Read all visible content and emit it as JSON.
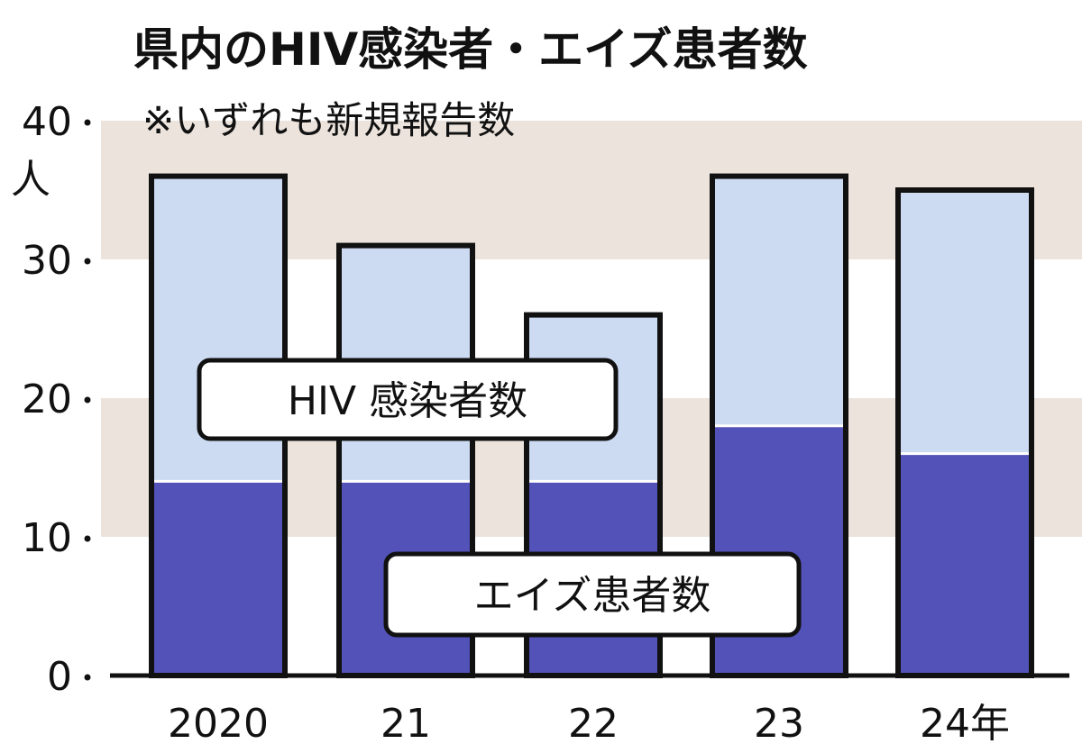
{
  "chart_data": {
    "type": "bar",
    "stacked": true,
    "title": "県内のHIV感染者・エイズ患者数",
    "subtitle": "※いずれも新規報告数",
    "ylabel": "人",
    "ylim": [
      0,
      40
    ],
    "yticks": [
      "0",
      "10",
      "20",
      "30",
      "40"
    ],
    "categories": [
      "2020",
      "21",
      "22",
      "23",
      "24年"
    ],
    "series": [
      {
        "name": "エイズ患者数",
        "values": [
          14,
          14,
          14,
          18,
          16
        ]
      },
      {
        "name": "HIV 感染者数",
        "values": [
          22,
          17,
          12,
          18,
          19
        ]
      }
    ],
    "grid": "alternating horizontal bands",
    "colors": {
      "band": "#ebe3dc",
      "aids": "#5252b8",
      "hiv": "#ccdaf2",
      "outline": "#111111"
    }
  }
}
